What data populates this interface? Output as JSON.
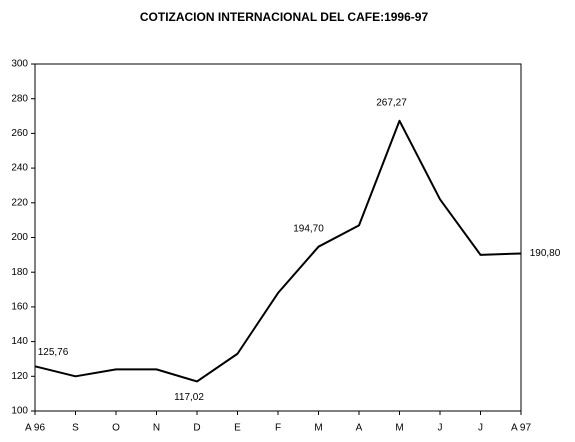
{
  "chart_data": {
    "type": "line",
    "title": "COTIZACION INTERNACIONAL DEL CAFE:1996-97",
    "categories": [
      "A 96",
      "S",
      "O",
      "N",
      "D",
      "E",
      "F",
      "M",
      "A",
      "M",
      "J",
      "J",
      "A 97"
    ],
    "values": [
      125.76,
      120,
      124,
      124,
      117.02,
      133,
      168,
      194.7,
      207,
      267.27,
      222,
      190,
      190.8
    ],
    "value_labels": [
      "125,76",
      null,
      null,
      null,
      "117,02",
      null,
      null,
      "194,70",
      null,
      "267,27",
      null,
      null,
      "190,80"
    ],
    "color": "#000000",
    "ylim": [
      100,
      300
    ],
    "yticks": [
      100,
      120,
      140,
      160,
      180,
      200,
      220,
      240,
      260,
      280,
      300
    ],
    "grid": false
  }
}
